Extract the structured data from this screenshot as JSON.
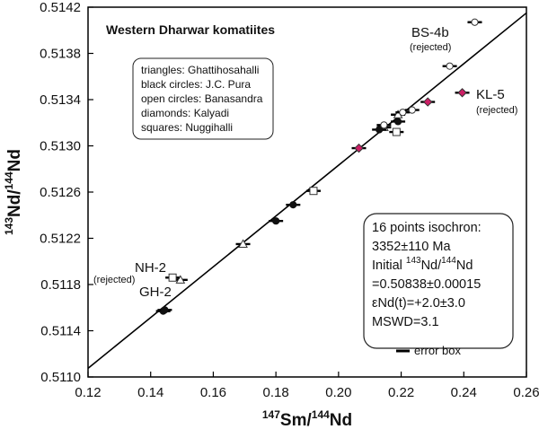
{
  "chart_data": {
    "type": "scatter",
    "title": "Western Dharwar komatiites",
    "xlabel": {
      "sup": "147",
      "base": "Sm/",
      "sup2": "144",
      "base2": "Nd"
    },
    "ylabel": {
      "sup": "143",
      "base": "Nd/",
      "sup2": "144",
      "base2": "Nd"
    },
    "xlim": [
      0.12,
      0.26
    ],
    "ylim": [
      0.511,
      0.5142
    ],
    "x_ticks": [
      "0.12",
      "0.14",
      "0.16",
      "0.18",
      "0.20",
      "0.22",
      "0.24",
      "0.26"
    ],
    "x_tick_values": [
      0.12,
      0.14,
      0.16,
      0.18,
      0.2,
      0.22,
      0.24,
      0.26
    ],
    "y_ticks": [
      "0.5110",
      "0.5114",
      "0.5118",
      "0.5122",
      "0.5126",
      "0.5130",
      "0.5134",
      "0.5138",
      "0.5142"
    ],
    "y_tick_values": [
      0.511,
      0.5114,
      0.5118,
      0.5122,
      0.5126,
      0.513,
      0.5134,
      0.5138,
      0.5142
    ],
    "grid": false,
    "isochron_line": {
      "x": [
        0.12,
        0.26
      ],
      "y": [
        0.511075,
        0.51415
      ]
    },
    "legend_lines": [
      "triangles: Ghattihosahalli",
      "black circles: J.C. Pura",
      "open circles: Banasandra",
      "diamonds: Kalyadi",
      "squares: Nuggihalli"
    ],
    "colors": {
      "kalyadi": "#cc1f66",
      "marker_stroke": "#333333",
      "line": "#000000"
    },
    "series": [
      {
        "group": "Ghattihosahalli",
        "marker": "triangle",
        "fill": "open",
        "points": [
          [
            0.1495,
            0.51184
          ],
          [
            0.1695,
            0.51215
          ],
          [
            0.2145,
            0.51316
          ],
          [
            0.219,
            0.51327
          ]
        ]
      },
      {
        "group": "J.C. Pura",
        "marker": "circle",
        "fill": "black",
        "points": [
          [
            0.144,
            0.51157
          ],
          [
            0.1445,
            0.51158
          ],
          [
            0.18,
            0.51235
          ],
          [
            0.1855,
            0.51249
          ],
          [
            0.213,
            0.51314
          ],
          [
            0.219,
            0.51321
          ]
        ]
      },
      {
        "group": "Banasandra",
        "marker": "circle",
        "fill": "open",
        "points": [
          [
            0.2145,
            0.51318
          ],
          [
            0.2205,
            0.51329
          ],
          [
            0.2235,
            0.51331
          ],
          [
            0.2355,
            0.51369
          ],
          [
            0.2435,
            0.51407
          ]
        ]
      },
      {
        "group": "Kalyadi",
        "marker": "diamond",
        "fill": "colored",
        "points": [
          [
            0.2065,
            0.51298
          ],
          [
            0.2285,
            0.51338
          ],
          [
            0.2395,
            0.51346
          ]
        ]
      },
      {
        "group": "Nuggihalli",
        "marker": "square",
        "fill": "open",
        "points": [
          [
            0.147,
            0.51186
          ],
          [
            0.192,
            0.51261
          ],
          [
            0.2185,
            0.51312
          ]
        ]
      }
    ],
    "annotations": [
      {
        "main": "BS-4b",
        "sub": "(rejected)"
      },
      {
        "main": "KL-5",
        "sub": "(rejected)"
      },
      {
        "main": "NH-2",
        "sub": "(rejected)"
      },
      {
        "main": "GH-2",
        "sub": ""
      }
    ],
    "isochron_box": {
      "line1": "16 points isochron:",
      "line2": "3352±110 Ma",
      "line3_pre": "Initial ",
      "line3_sup1": "143",
      "line3_mid": "Nd/",
      "line3_sup2": "144",
      "line3_post": "Nd",
      "line4": "=0.50838±0.00015",
      "line5_eps": "ε",
      "line5": "Nd(t)=+2.0±3.0",
      "line6": "MSWD=3.1"
    },
    "error_box_key": "error box"
  }
}
